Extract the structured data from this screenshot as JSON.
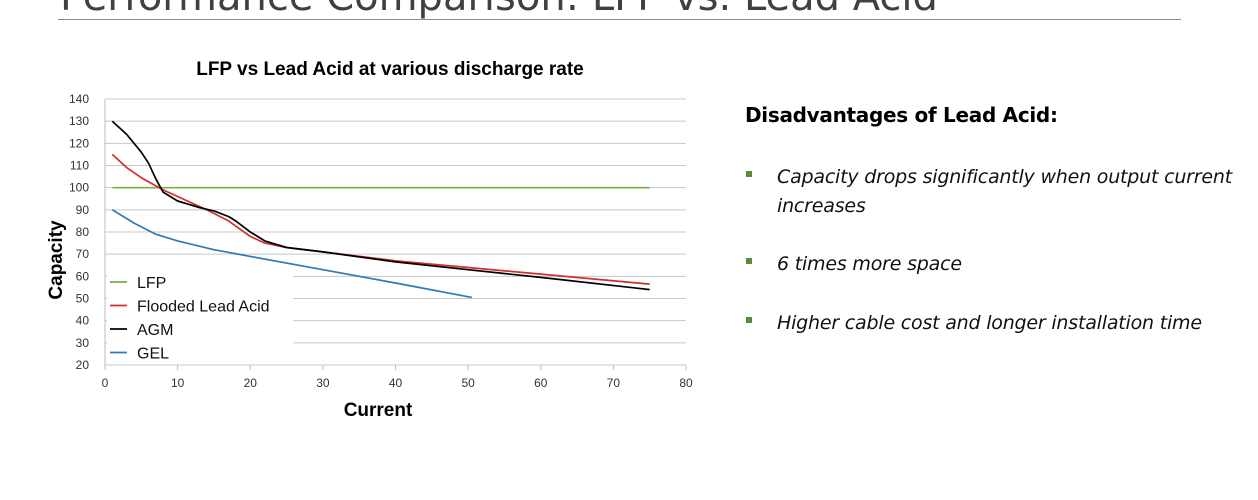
{
  "slide": {
    "title": "Performance Comparison: LFP vs. Lead Acid"
  },
  "panel": {
    "heading": "Disadvantages of Lead Acid:",
    "bullets": [
      "Capacity drops significantly when output current increases",
      "6 times more space",
      "Higher cable cost and longer installation time"
    ],
    "bullet_color": "#5b8a3c"
  },
  "chart_data": {
    "type": "line",
    "title": "LFP vs Lead Acid at various discharge rate",
    "xlabel": "Current",
    "ylabel": "Capacity",
    "xlim": [
      0,
      80
    ],
    "ylim": [
      20,
      140
    ],
    "xticks": [
      "0",
      "10",
      "20",
      "30",
      "40",
      "50",
      "60",
      "70",
      "80"
    ],
    "yticks": [
      "20",
      "30",
      "40",
      "50",
      "60",
      "70",
      "80",
      "90",
      "100",
      "110",
      "120",
      "130",
      "140"
    ],
    "grid": "horizontal",
    "legend": "bottom-left",
    "series": [
      {
        "name": "LFP",
        "color": "#77b043",
        "points": [
          [
            1,
            100
          ],
          [
            75,
            100
          ]
        ]
      },
      {
        "name": "Flooded Lead Acid",
        "color": "#d02f2f",
        "points": [
          [
            1,
            115
          ],
          [
            3,
            109
          ],
          [
            5,
            104.5
          ],
          [
            8,
            99
          ],
          [
            10,
            96
          ],
          [
            14,
            90
          ],
          [
            17,
            85
          ],
          [
            20,
            78
          ],
          [
            22,
            75
          ],
          [
            25,
            73
          ],
          [
            30,
            71
          ],
          [
            40,
            67
          ],
          [
            50,
            64
          ],
          [
            60,
            61
          ],
          [
            75,
            56.5
          ]
        ]
      },
      {
        "name": "AGM",
        "color": "#000000",
        "points": [
          [
            1,
            130
          ],
          [
            3,
            124
          ],
          [
            5,
            116
          ],
          [
            6,
            111
          ],
          [
            7,
            104
          ],
          [
            8,
            98
          ],
          [
            10,
            94
          ],
          [
            13,
            91
          ],
          [
            15,
            89.5
          ],
          [
            17,
            87
          ],
          [
            18,
            85
          ],
          [
            20,
            80
          ],
          [
            22,
            76
          ],
          [
            25,
            73
          ],
          [
            30,
            71
          ],
          [
            40,
            66.5
          ],
          [
            50,
            63
          ],
          [
            60,
            59.5
          ],
          [
            75,
            54
          ]
        ]
      },
      {
        "name": "GEL",
        "color": "#2c7bb6",
        "points": [
          [
            1,
            90
          ],
          [
            4,
            84
          ],
          [
            7,
            79
          ],
          [
            10,
            76
          ],
          [
            15,
            72
          ],
          [
            20,
            69
          ],
          [
            30,
            63
          ],
          [
            40,
            57
          ],
          [
            50.5,
            50.5
          ]
        ]
      }
    ]
  }
}
